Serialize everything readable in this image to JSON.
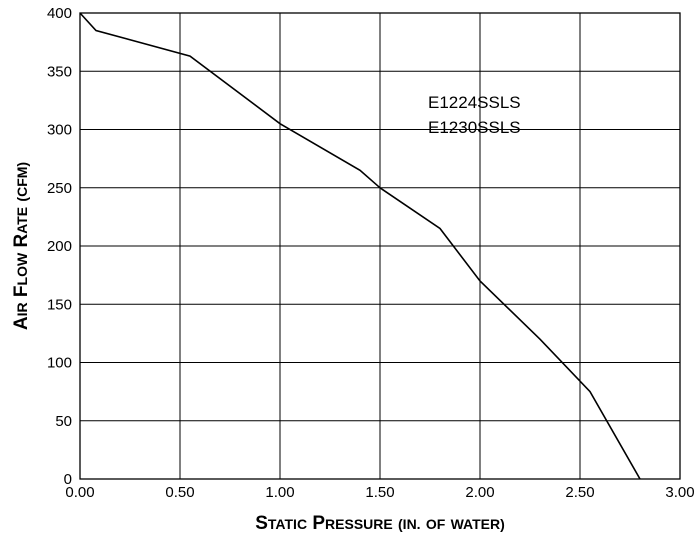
{
  "chart_data": {
    "type": "line",
    "xlabel": "Static Pressure (in. of water)",
    "ylabel": "Air Flow Rate (cfm)",
    "xlim": [
      0,
      3
    ],
    "ylim": [
      0,
      400
    ],
    "grid": true,
    "x_ticks": [
      "0.00",
      "0.50",
      "1.00",
      "1.50",
      "2.00",
      "2.50",
      "3.00"
    ],
    "y_ticks": [
      "0",
      "50",
      "100",
      "150",
      "200",
      "250",
      "300",
      "350",
      "400"
    ],
    "annotations": [
      "E1224SSLS",
      "E1230SSLS"
    ],
    "series": [
      {
        "x": [
          0.0,
          0.08,
          0.55,
          1.0,
          1.4,
          1.5,
          1.8,
          2.0,
          2.3,
          2.55,
          2.8
        ],
        "y": [
          400,
          385,
          363,
          305,
          265,
          250,
          215,
          170,
          120,
          75,
          0
        ]
      }
    ]
  }
}
